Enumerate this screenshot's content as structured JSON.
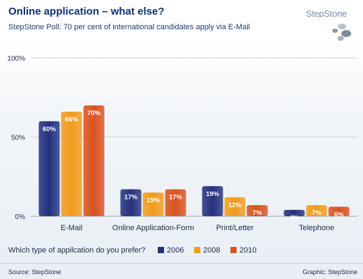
{
  "header": {
    "title": "Online application – what else?",
    "subtitle": "StepStone Poll: 70 per cent of international candidates apply via E-Mail",
    "logo_text": "StepStone"
  },
  "chart_data": {
    "type": "bar",
    "title": "Online application – what else?",
    "subtitle": "StepStone Poll: 70 per cent of international candidates apply via E-Mail",
    "xlabel": "",
    "ylabel": "",
    "ylim": [
      0,
      100
    ],
    "yticks": [
      "0%",
      "50%",
      "100%"
    ],
    "grid": true,
    "categories": [
      "E-Mail",
      "Online Application-Form",
      "Print/Letter",
      "Telephone"
    ],
    "series": [
      {
        "name": "2006",
        "values": [
          60,
          17,
          19,
          4
        ],
        "labels": [
          "60%",
          "17%",
          "19%",
          "4%"
        ],
        "color": "#24327e"
      },
      {
        "name": "2008",
        "values": [
          66,
          15,
          12,
          7
        ],
        "labels": [
          "66%",
          "15%",
          "12%",
          "7%"
        ],
        "color": "#f29b1d"
      },
      {
        "name": "2010",
        "values": [
          70,
          17,
          7,
          6
        ],
        "labels": [
          "70%",
          "17%",
          "7%",
          "6%"
        ],
        "color": "#d95320"
      }
    ],
    "legend_title": "Which type of appilcation do you prefer?",
    "legend_position": "bottom"
  },
  "footer": {
    "source": "Source: StepStone",
    "graphic": "Graphic: StepStone"
  }
}
